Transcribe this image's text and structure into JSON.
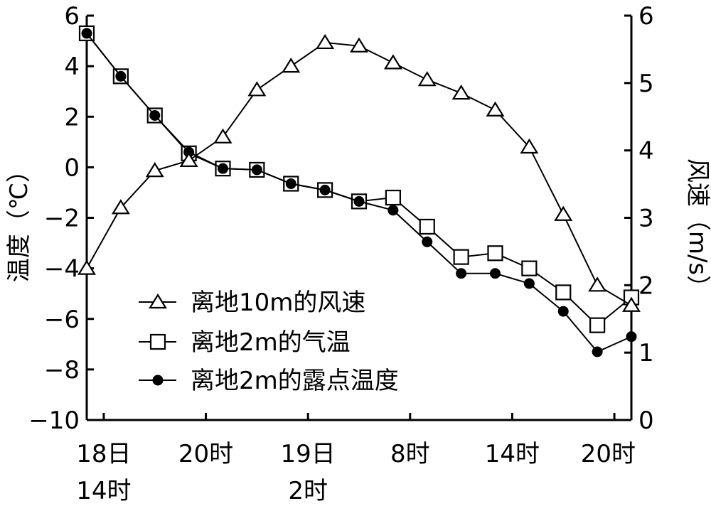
{
  "chart_data": {
    "type": "line",
    "left_axis": {
      "label": "温度（℃）",
      "range": [
        -10,
        6
      ],
      "ticks": [
        "−10",
        "−8",
        "−6",
        "−4",
        "−2",
        "0",
        "2",
        "4",
        "6"
      ]
    },
    "right_axis": {
      "label": "风速（m/s）",
      "range": [
        0,
        6
      ],
      "ticks": [
        "0",
        "1",
        "2",
        "3",
        "4",
        "5",
        "6"
      ]
    },
    "x_axis": {
      "range_hours": [
        -1,
        31
      ],
      "tick_hours": [
        0,
        6,
        12,
        18,
        24,
        30
      ],
      "tick_labels": [
        [
          "18日",
          "14时"
        ],
        [
          "20时"
        ],
        [
          "19日",
          "2时"
        ],
        [
          "8时"
        ],
        [
          "14时"
        ],
        [
          "20时"
        ]
      ]
    },
    "grid": false,
    "legend_position": "bottom-left",
    "series": [
      {
        "name": "离地10m的风速",
        "axis": "right",
        "marker": "triangle",
        "x": [
          -1,
          1,
          3,
          5,
          7,
          9,
          11,
          13,
          15,
          17,
          19,
          21,
          23,
          25,
          27,
          29,
          31
        ],
        "values": [
          2.25,
          3.15,
          3.7,
          3.85,
          4.2,
          4.9,
          5.25,
          5.6,
          5.55,
          5.3,
          5.05,
          4.85,
          4.6,
          4.05,
          3.05,
          2.0,
          1.7
        ]
      },
      {
        "name": "离地2m的气温",
        "axis": "left",
        "marker": "square",
        "x": [
          -1,
          1,
          3,
          5,
          7,
          9,
          11,
          13,
          15,
          17,
          19,
          21,
          23,
          25,
          27,
          29,
          31
        ],
        "values": [
          5.3,
          3.6,
          2.05,
          0.55,
          -0.05,
          -0.1,
          -0.65,
          -0.9,
          -1.35,
          -1.2,
          -2.35,
          -3.55,
          -3.4,
          -4.0,
          -4.95,
          -6.25,
          -5.15
        ]
      },
      {
        "name": "离地2m的露点温度",
        "axis": "left",
        "marker": "filled-circle",
        "x": [
          -1,
          1,
          3,
          5,
          7,
          9,
          11,
          13,
          15,
          17,
          19,
          21,
          23,
          25,
          27,
          29,
          31
        ],
        "values": [
          5.3,
          3.6,
          2.05,
          0.6,
          -0.05,
          -0.1,
          -0.65,
          -0.9,
          -1.35,
          -1.7,
          -2.95,
          -4.2,
          -4.2,
          -4.6,
          -5.7,
          -7.3,
          -6.7
        ]
      }
    ]
  }
}
